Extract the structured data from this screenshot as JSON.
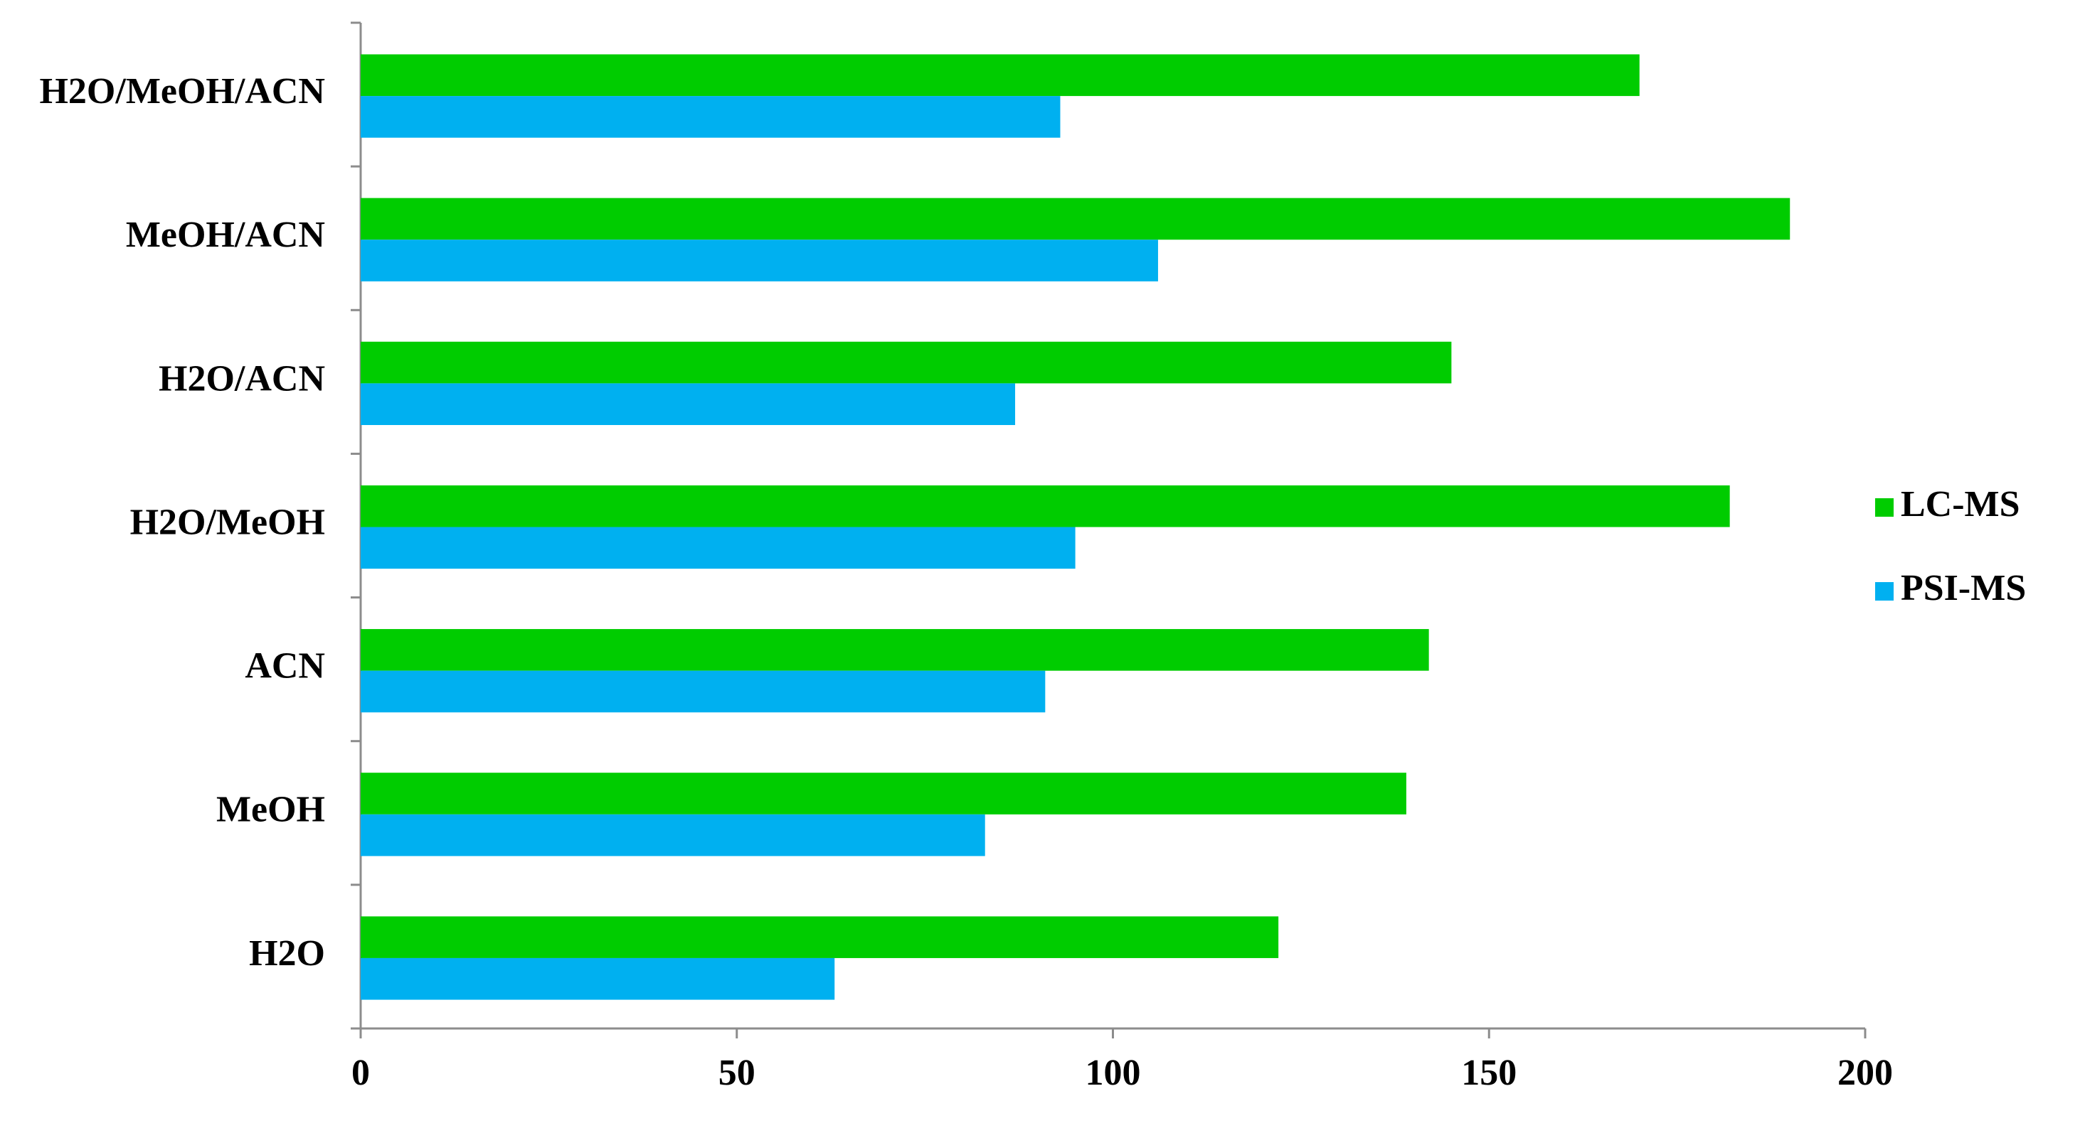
{
  "chart_data": {
    "type": "hbar",
    "categories": [
      "H2O",
      "MeOH",
      "ACN",
      "H2O/MeOH",
      "H2O/ACN",
      "MeOH/ACN",
      "H2O/MeOH/ACN"
    ],
    "series": [
      {
        "name": "LC-MS",
        "color": "#00cc00",
        "values": [
          122,
          139,
          142,
          182,
          145,
          190,
          170
        ]
      },
      {
        "name": "PSI-MS",
        "color": "#00b0f0",
        "values": [
          63,
          83,
          91,
          95,
          87,
          106,
          93
        ]
      }
    ],
    "xlim": [
      0,
      200
    ],
    "xticks": [
      0,
      50,
      100,
      150,
      200
    ],
    "grid": false,
    "legend": "right"
  }
}
